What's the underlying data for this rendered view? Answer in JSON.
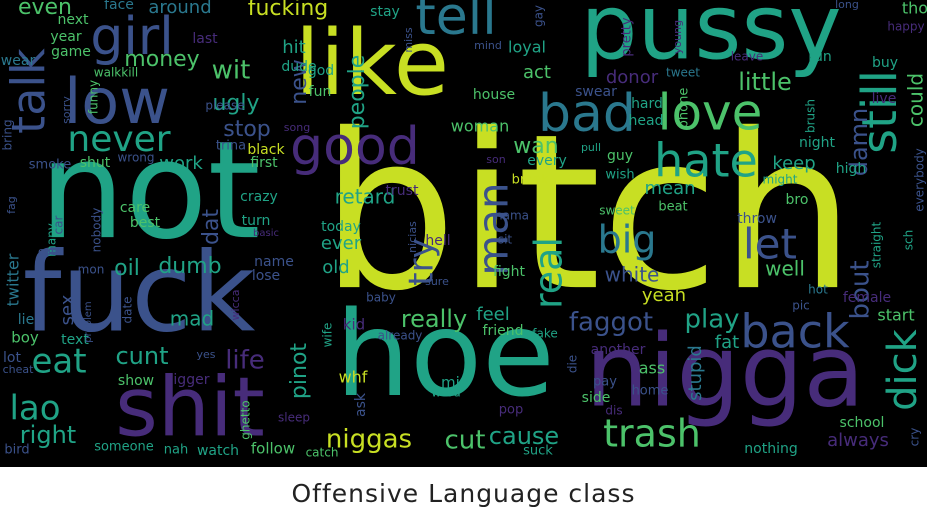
{
  "caption": "Offensive Language class",
  "colors": {
    "background": "#000000",
    "palette": {
      "y": "#c8df23",
      "g": "#4cc26a",
      "t": "#20a386",
      "c": "#2a788e",
      "b": "#3b528b",
      "p": "#472c7a",
      "d": "#440154"
    }
  },
  "words": [
    {
      "text": "bitch",
      "c": "y"
    },
    {
      "text": "not",
      "c": "t"
    },
    {
      "text": "hoe",
      "c": "t"
    },
    {
      "text": "fuck",
      "c": "b"
    },
    {
      "text": "nigga",
      "c": "p"
    },
    {
      "text": "pussy",
      "c": "t"
    },
    {
      "text": "like",
      "c": "y"
    },
    {
      "text": "shit",
      "c": "p"
    },
    {
      "text": "low",
      "c": "b"
    },
    {
      "text": "girl",
      "c": "b"
    },
    {
      "text": "tell",
      "c": "c"
    },
    {
      "text": "talk",
      "c": "b"
    },
    {
      "text": "good",
      "c": "p"
    },
    {
      "text": "bad",
      "c": "c"
    },
    {
      "text": "love",
      "c": "g"
    },
    {
      "text": "hate",
      "c": "t"
    },
    {
      "text": "still",
      "c": "t"
    },
    {
      "text": "back",
      "c": "b"
    },
    {
      "text": "dick",
      "c": "t"
    },
    {
      "text": "never",
      "c": "t"
    },
    {
      "text": "big",
      "c": "c"
    },
    {
      "text": "let",
      "c": "b"
    },
    {
      "text": "man",
      "c": "b"
    },
    {
      "text": "real",
      "c": "t"
    },
    {
      "text": "try",
      "c": "b"
    },
    {
      "text": "trash",
      "c": "g"
    },
    {
      "text": "lao",
      "c": "t"
    },
    {
      "text": "eat",
      "c": "t"
    },
    {
      "text": "right",
      "c": "t"
    },
    {
      "text": "niggas",
      "c": "y"
    },
    {
      "text": "cut",
      "c": "g"
    },
    {
      "text": "cause",
      "c": "t"
    },
    {
      "text": "faggot",
      "c": "b"
    },
    {
      "text": "play",
      "c": "t"
    },
    {
      "text": "really",
      "c": "g"
    },
    {
      "text": "cunt",
      "c": "t"
    },
    {
      "text": "life",
      "c": "p"
    },
    {
      "text": "money",
      "c": "g"
    },
    {
      "text": "wit",
      "c": "g"
    },
    {
      "text": "ugly",
      "c": "t"
    },
    {
      "text": "stop",
      "c": "b"
    },
    {
      "text": "people",
      "c": "t"
    },
    {
      "text": "fucking",
      "c": "y"
    },
    {
      "text": "even",
      "c": "g"
    },
    {
      "text": "around",
      "c": "c"
    },
    {
      "text": "hit",
      "c": "t"
    },
    {
      "text": "new",
      "c": "b"
    },
    {
      "text": "little",
      "c": "g"
    },
    {
      "text": "bout",
      "c": "b"
    },
    {
      "text": "damn",
      "c": "b"
    },
    {
      "text": "could",
      "c": "g"
    },
    {
      "text": "oil",
      "c": "t"
    },
    {
      "text": "dumb",
      "c": "t"
    },
    {
      "text": "dat",
      "c": "b"
    },
    {
      "text": "mad",
      "c": "t"
    },
    {
      "text": "white",
      "c": "b"
    },
    {
      "text": "well",
      "c": "g"
    },
    {
      "text": "yeah",
      "c": "y"
    },
    {
      "text": "pinot",
      "c": "t"
    },
    {
      "text": "retard",
      "c": "t"
    },
    {
      "text": "wan",
      "c": "g"
    },
    {
      "text": "mean",
      "c": "t"
    },
    {
      "text": "keep",
      "c": "t"
    },
    {
      "text": "stupid",
      "c": "c"
    },
    {
      "text": "fat",
      "c": "t"
    },
    {
      "text": "feel",
      "c": "t"
    },
    {
      "text": "ever",
      "c": "t"
    },
    {
      "text": "old",
      "c": "t"
    },
    {
      "text": "sex",
      "c": "b"
    },
    {
      "text": "work",
      "c": "t"
    },
    {
      "text": "woman",
      "c": "g"
    },
    {
      "text": "act",
      "c": "g"
    },
    {
      "text": "loyal",
      "c": "t"
    },
    {
      "text": "donor",
      "c": "p"
    },
    {
      "text": "always",
      "c": "p"
    },
    {
      "text": "school",
      "c": "g"
    },
    {
      "text": "start",
      "c": "g"
    },
    {
      "text": "female",
      "c": "p"
    },
    {
      "text": "whf",
      "c": "y"
    },
    {
      "text": "mia",
      "c": "t"
    },
    {
      "text": "ass",
      "c": "g"
    },
    {
      "text": "friend",
      "c": "g"
    },
    {
      "text": "kid",
      "c": "p"
    },
    {
      "text": "next",
      "c": "g"
    },
    {
      "text": "year",
      "c": "g"
    },
    {
      "text": "game",
      "c": "g"
    },
    {
      "text": "wear",
      "c": "c"
    },
    {
      "text": "face",
      "c": "c"
    },
    {
      "text": "last",
      "c": "p"
    },
    {
      "text": "dude",
      "c": "t"
    },
    {
      "text": "stay",
      "c": "t"
    },
    {
      "text": "god",
      "c": "t"
    },
    {
      "text": "fun",
      "c": "g"
    },
    {
      "text": "house",
      "c": "g"
    },
    {
      "text": "swear",
      "c": "b"
    },
    {
      "text": "hard",
      "c": "t"
    },
    {
      "text": "head",
      "c": "t"
    },
    {
      "text": "run",
      "c": "t"
    },
    {
      "text": "buy",
      "c": "t"
    },
    {
      "text": "live",
      "c": "p"
    },
    {
      "text": "tho",
      "c": "g"
    },
    {
      "text": "happy",
      "c": "p"
    },
    {
      "text": "leave",
      "c": "p"
    },
    {
      "text": "tweet",
      "c": "c"
    },
    {
      "text": "night",
      "c": "t"
    },
    {
      "text": "brush",
      "c": "t"
    },
    {
      "text": "high",
      "c": "t"
    },
    {
      "text": "bro",
      "c": "g"
    },
    {
      "text": "hot",
      "c": "c"
    },
    {
      "text": "pic",
      "c": "b"
    },
    {
      "text": "throw",
      "c": "b"
    },
    {
      "text": "black",
      "c": "y"
    },
    {
      "text": "first",
      "c": "g"
    },
    {
      "text": "crazy",
      "c": "t"
    },
    {
      "text": "turn",
      "c": "t"
    },
    {
      "text": "name",
      "c": "b"
    },
    {
      "text": "lose",
      "c": "b"
    },
    {
      "text": "today",
      "c": "t"
    },
    {
      "text": "trust",
      "c": "p"
    },
    {
      "text": "guy",
      "c": "g"
    },
    {
      "text": "wish",
      "c": "t"
    },
    {
      "text": "break",
      "c": "y"
    },
    {
      "text": "every",
      "c": "t"
    },
    {
      "text": "hell",
      "c": "p"
    },
    {
      "text": "fight",
      "c": "g"
    },
    {
      "text": "beat",
      "c": "g"
    },
    {
      "text": "sweet",
      "c": "g"
    },
    {
      "text": "hama",
      "c": "b"
    },
    {
      "text": "sit",
      "c": "b"
    },
    {
      "text": "care",
      "c": "g"
    },
    {
      "text": "best",
      "c": "g"
    },
    {
      "text": "smoke",
      "c": "b"
    },
    {
      "text": "shut",
      "c": "g"
    },
    {
      "text": "wrong",
      "c": "b"
    },
    {
      "text": "nobody",
      "c": "b"
    },
    {
      "text": "many",
      "c": "t"
    },
    {
      "text": "car",
      "c": "b"
    },
    {
      "text": "mon",
      "c": "b"
    },
    {
      "text": "boy",
      "c": "g"
    },
    {
      "text": "text",
      "c": "t"
    },
    {
      "text": "lot",
      "c": "b"
    },
    {
      "text": "bird",
      "c": "b"
    },
    {
      "text": "show",
      "c": "g"
    },
    {
      "text": "nigger",
      "c": "p"
    },
    {
      "text": "someone",
      "c": "t"
    },
    {
      "text": "nah",
      "c": "t"
    },
    {
      "text": "watch",
      "c": "t"
    },
    {
      "text": "follow",
      "c": "g"
    },
    {
      "text": "catch",
      "c": "g"
    },
    {
      "text": "nothing",
      "c": "t"
    },
    {
      "text": "suck",
      "c": "t"
    },
    {
      "text": "pop",
      "c": "p"
    },
    {
      "text": "word",
      "c": "t"
    },
    {
      "text": "side",
      "c": "g"
    },
    {
      "text": "another",
      "c": "p"
    },
    {
      "text": "home",
      "c": "b"
    },
    {
      "text": "pay",
      "c": "b"
    },
    {
      "text": "dis",
      "c": "p"
    },
    {
      "text": "ask",
      "c": "b"
    },
    {
      "text": "please",
      "c": "b"
    },
    {
      "text": "song",
      "c": "p"
    },
    {
      "text": "trina",
      "c": "b"
    },
    {
      "text": "walkkill",
      "c": "g"
    },
    {
      "text": "funny",
      "c": "g"
    },
    {
      "text": "sorry",
      "c": "b"
    },
    {
      "text": "bring",
      "c": "b"
    },
    {
      "text": "twitter",
      "c": "c"
    },
    {
      "text": "fag",
      "c": "b"
    },
    {
      "text": "lie",
      "c": "c"
    },
    {
      "text": "cheat",
      "c": "b"
    },
    {
      "text": "mind",
      "c": "b"
    },
    {
      "text": "miss",
      "c": "b"
    },
    {
      "text": "gay",
      "c": "b"
    },
    {
      "text": "pretty",
      "c": "p"
    },
    {
      "text": "young",
      "c": "p"
    },
    {
      "text": "phone",
      "c": "g"
    },
    {
      "text": "son",
      "c": "p"
    },
    {
      "text": "pull",
      "c": "t"
    },
    {
      "text": "might",
      "c": "t"
    },
    {
      "text": "long",
      "c": "b"
    },
    {
      "text": "everybody",
      "c": "b"
    },
    {
      "text": "straight",
      "c": "t"
    },
    {
      "text": "sch",
      "c": "t"
    },
    {
      "text": "cry",
      "c": "b"
    },
    {
      "text": "wife",
      "c": "t"
    },
    {
      "text": "already",
      "c": "b"
    },
    {
      "text": "fake",
      "c": "t"
    },
    {
      "text": "die",
      "c": "b"
    },
    {
      "text": "ghetto",
      "c": "g"
    },
    {
      "text": "sleep",
      "c": "p"
    },
    {
      "text": "wicca",
      "c": "p"
    },
    {
      "text": "date",
      "c": "b"
    },
    {
      "text": "problem",
      "c": "b"
    },
    {
      "text": "cute",
      "c": "b"
    },
    {
      "text": "basic",
      "c": "p"
    },
    {
      "text": "baby",
      "c": "b"
    },
    {
      "text": "sure",
      "c": "b"
    },
    {
      "text": "nicias",
      "c": "b"
    },
    {
      "text": "yes",
      "c": "b"
    }
  ]
}
